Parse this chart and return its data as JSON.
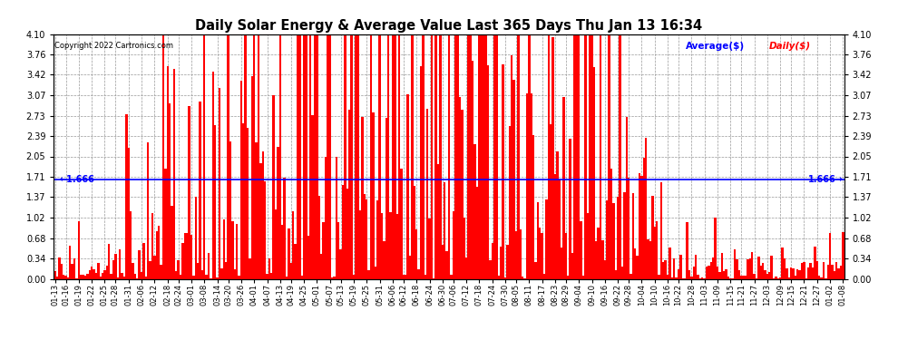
{
  "title": "Daily Solar Energy & Average Value Last 365 Days Thu Jan 13 16:34",
  "copyright": "Copyright 2022 Cartronics.com",
  "average_label": "Average($)",
  "daily_label": "Daily($)",
  "average_value": 1.666,
  "ylim": [
    0.0,
    4.1
  ],
  "yticks": [
    0.0,
    0.34,
    0.68,
    1.02,
    1.37,
    1.71,
    2.05,
    2.39,
    2.73,
    3.07,
    3.42,
    3.76,
    4.1
  ],
  "bar_color": "#ff0000",
  "avg_line_color": "#0000ff",
  "background_color": "#ffffff",
  "grid_color": "#999999",
  "title_color": "#000000",
  "avg_text_color": "#0000ff",
  "daily_text_color": "#ff0000",
  "x_dates": [
    "01-13",
    "01-16",
    "01-19",
    "01-22",
    "01-25",
    "01-28",
    "01-31",
    "02-06",
    "02-12",
    "02-18",
    "02-24",
    "03-01",
    "03-08",
    "03-14",
    "03-20",
    "03-26",
    "04-01",
    "04-07",
    "04-13",
    "04-19",
    "04-25",
    "05-01",
    "05-07",
    "05-13",
    "05-19",
    "05-25",
    "05-31",
    "06-06",
    "06-12",
    "06-18",
    "06-24",
    "06-30",
    "07-06",
    "07-12",
    "07-18",
    "07-24",
    "07-30",
    "08-05",
    "08-11",
    "08-17",
    "08-23",
    "08-29",
    "09-04",
    "09-10",
    "09-16",
    "09-22",
    "09-28",
    "10-04",
    "10-10",
    "10-16",
    "10-22",
    "10-28",
    "11-03",
    "11-09",
    "11-15",
    "11-21",
    "11-27",
    "12-03",
    "12-09",
    "12-15",
    "12-21",
    "12-27",
    "01-02",
    "01-08"
  ]
}
